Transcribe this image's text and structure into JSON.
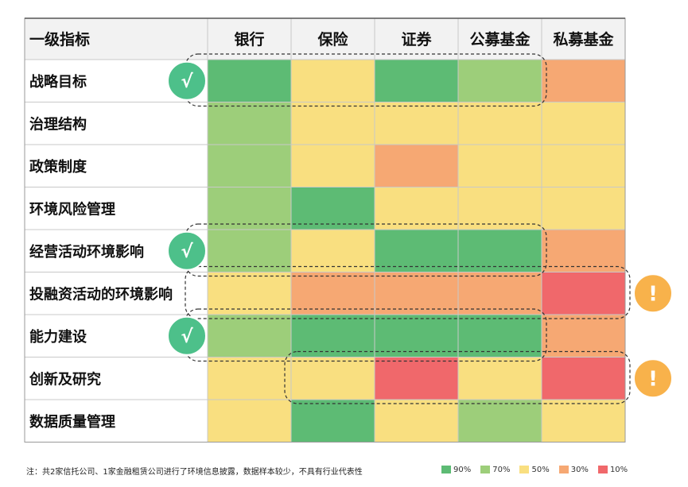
{
  "chart_data": {
    "type": "heatmap",
    "corner_label": "一级指标",
    "columns": [
      "银行",
      "保险",
      "证券",
      "公募基金",
      "私募基金"
    ],
    "rows": [
      "战略目标",
      "治理结构",
      "政策制度",
      "环境风险管理",
      "经营活动环境影响",
      "投融资活动的环境影响",
      "能力建设",
      "创新及研究",
      "数据质量管理"
    ],
    "values": [
      [
        90,
        50,
        90,
        70,
        30
      ],
      [
        70,
        50,
        50,
        50,
        50
      ],
      [
        70,
        50,
        30,
        50,
        50
      ],
      [
        70,
        90,
        50,
        50,
        50
      ],
      [
        70,
        50,
        90,
        90,
        30
      ],
      [
        50,
        30,
        30,
        30,
        10
      ],
      [
        70,
        90,
        90,
        90,
        30
      ],
      [
        50,
        50,
        10,
        50,
        10
      ],
      [
        50,
        90,
        50,
        70,
        50
      ]
    ],
    "legend": [
      {
        "label": "90%",
        "value": 90,
        "color": "#5dbb74"
      },
      {
        "label": "70%",
        "value": 70,
        "color": "#9dce7a"
      },
      {
        "label": "50%",
        "value": 50,
        "color": "#f9df80"
      },
      {
        "label": "30%",
        "value": 30,
        "color": "#f6a873"
      },
      {
        "label": "10%",
        "value": 10,
        "color": "#f0686b"
      }
    ],
    "check_marks": {
      "rows": [
        0,
        4,
        6
      ],
      "symbol": "√",
      "color": "#4dc08a"
    },
    "alert_marks": {
      "rows": [
        5,
        7
      ],
      "symbol": "!",
      "color": "#f8b24b"
    },
    "highlight_groups": [
      {
        "rows": [
          0
        ],
        "from_col": 0,
        "to_col": 3
      },
      {
        "rows": [
          4
        ],
        "from_col": 0,
        "to_col": 3
      },
      {
        "rows": [
          6
        ],
        "from_col": 0,
        "to_col": 3
      },
      {
        "rows": [
          5
        ],
        "from_col": 0,
        "to_col": 4
      },
      {
        "rows": [
          7
        ],
        "from_col": 1,
        "to_col": 4
      }
    ]
  },
  "footnote": "注：共2家信托公司、1家金融租赁公司进行了环境信息披露，数据样本较少，不具有行业代表性"
}
